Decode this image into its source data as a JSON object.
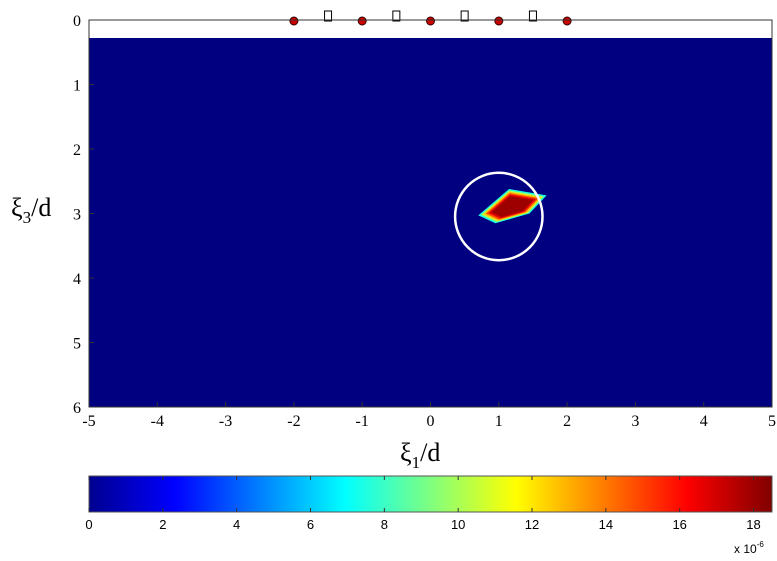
{
  "chart_data": {
    "type": "heatmap",
    "x_range": [
      -5,
      5
    ],
    "y_range": [
      0,
      6
    ],
    "y_reversed": true,
    "x_ticks": [
      "-5",
      "-4",
      "-3",
      "-2",
      "-1",
      "0",
      "1",
      "2",
      "3",
      "4",
      "5"
    ],
    "y_ticks": [
      "0",
      "1",
      "2",
      "3",
      "4",
      "5",
      "6"
    ],
    "xlabel": {
      "base": "ξ",
      "sub": "1",
      "rest": "/d"
    },
    "ylabel": {
      "base": "ξ",
      "sub": "3",
      "rest": "/d"
    },
    "background_level": 0,
    "colormap": "jet",
    "colorbar": {
      "range": [
        0,
        18.5
      ],
      "ticks": [
        "0",
        "2",
        "4",
        "6",
        "8",
        "10",
        "12",
        "14",
        "16",
        "18"
      ],
      "multiplier_base": "x 10",
      "multiplier_exp": "-6"
    },
    "sensors": {
      "circle_x": [
        -2,
        -1,
        0,
        1,
        2
      ],
      "square_x": [
        -1.5,
        -0.5,
        0.5,
        1.5
      ],
      "y": 0,
      "circle_color": "#cc0000"
    },
    "blob": {
      "outline": [
        [
          0.7,
          3.03
        ],
        [
          1.15,
          2.62
        ],
        [
          1.7,
          2.72
        ],
        [
          1.45,
          3.0
        ],
        [
          0.95,
          3.15
        ]
      ],
      "peak_value": 18.5
    },
    "true_target": {
      "center": [
        1.0,
        3.0
      ],
      "radius": 0.4,
      "color": "#ffffff"
    }
  }
}
